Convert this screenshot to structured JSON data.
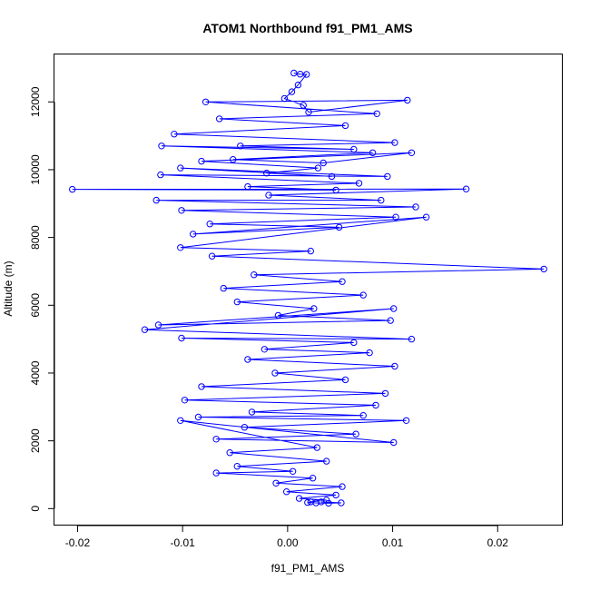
{
  "chart_data": {
    "type": "line",
    "title": "ATOM1 Northbound f91_PM1_AMS",
    "xlabel": "f91_PM1_AMS",
    "ylabel": "Altitude (m)",
    "xlim": [
      -0.0222,
      0.0262
    ],
    "ylim": [
      -500,
      13400
    ],
    "xticks": [
      -0.02,
      -0.01,
      0.0,
      0.01,
      0.02
    ],
    "xtick_labels": [
      "-0.02",
      "-0.01",
      "0.00",
      "0.01",
      "0.02"
    ],
    "yticks": [
      0,
      2000,
      4000,
      6000,
      8000,
      10000,
      12000
    ],
    "ytick_labels": [
      "0",
      "2000",
      "4000",
      "6000",
      "8000",
      "10000",
      "12000"
    ],
    "grid": false,
    "legend": "none",
    "line_color": "#0000ff",
    "marker": "open-circle",
    "series": [
      {
        "x": [
          0.0006,
          0.0012,
          0.0018,
          0.001,
          0.0004,
          -0.0003,
          0.0015,
          0.002,
          0.0114,
          -0.0078,
          0.0085,
          -0.0065,
          0.0055,
          -0.0108,
          0.0102,
          -0.0045,
          0.0063,
          -0.012,
          0.0081,
          -0.0052,
          0.0034,
          0.0118,
          -0.0082,
          0.0029,
          -0.002,
          0.0042,
          -0.0102,
          0.0095,
          -0.0121,
          0.0068,
          -0.0038,
          0.0046,
          -0.0205,
          0.017,
          -0.0018,
          0.0089,
          -0.0125,
          0.0122,
          -0.0101,
          0.0103,
          -0.0074,
          0.0049,
          -0.009,
          0.0132,
          -0.0102,
          0.0022,
          -0.0072,
          0.0244,
          -0.0032,
          0.0052,
          -0.0061,
          0.0072,
          -0.0048,
          0.0025,
          -0.0009,
          0.0098,
          -0.0123,
          0.0101,
          -0.0136,
          0.0118,
          -0.0101,
          0.0063,
          -0.0022,
          0.0078,
          -0.0038,
          0.0102,
          -0.0012,
          0.0055,
          -0.0082,
          0.0093,
          -0.0098,
          0.0084,
          -0.0034,
          0.0072,
          -0.0085,
          0.0113,
          -0.0041,
          0.0065,
          -0.0068,
          0.0101,
          -0.0102,
          0.0028,
          -0.0055,
          0.0037,
          -0.0048,
          0.0005,
          -0.0068,
          0.0024,
          -0.0011,
          0.0052,
          -0.0001,
          0.0046,
          0.0011,
          0.0037,
          0.0022,
          0.0019,
          0.0027,
          0.0039,
          0.0051,
          0.0032
        ],
        "y": [
          12850,
          12820,
          12810,
          12500,
          12300,
          12100,
          11900,
          11700,
          12050,
          12000,
          11650,
          11500,
          11300,
          11050,
          10800,
          10700,
          10600,
          10700,
          10500,
          10300,
          10200,
          10500,
          10250,
          10050,
          9900,
          9800,
          10050,
          9800,
          9850,
          9600,
          9500,
          9400,
          9420,
          9430,
          9250,
          9100,
          9100,
          8900,
          8800,
          8600,
          8400,
          8300,
          8100,
          8600,
          7700,
          7600,
          7450,
          7070,
          6900,
          6700,
          6500,
          6300,
          6100,
          5900,
          5700,
          5550,
          5420,
          5900,
          5280,
          5000,
          5030,
          4900,
          4700,
          4600,
          4400,
          4200,
          4000,
          3800,
          3600,
          3400,
          3200,
          3050,
          2850,
          2750,
          2700,
          2600,
          2400,
          2200,
          2050,
          1950,
          2600,
          1800,
          1650,
          1400,
          1250,
          1100,
          1050,
          900,
          750,
          650,
          500,
          400,
          300,
          250,
          200,
          180,
          170,
          160,
          170,
          200
        ]
      }
    ]
  }
}
